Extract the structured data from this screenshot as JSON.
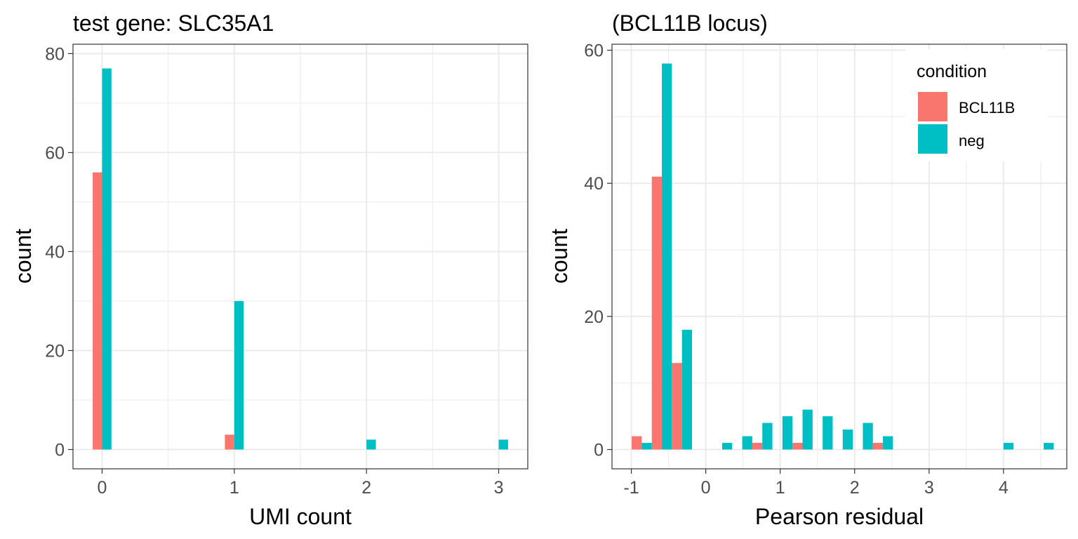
{
  "colors": {
    "BCL11B": "#F8766D",
    "neg": "#00BFC4"
  },
  "legend": {
    "title": "condition",
    "placement": "top-right",
    "items": [
      {
        "label": "BCL11B",
        "color": "#F8766D"
      },
      {
        "label": "neg",
        "color": "#00BFC4"
      }
    ]
  },
  "chart_data": [
    {
      "type": "bar",
      "title": "test gene: SLC35A1",
      "xlabel": "UMI count",
      "ylabel": "count",
      "xlim": [
        -0.22,
        3.22
      ],
      "ylim": [
        -3.9,
        81.9
      ],
      "xticks": [
        0,
        1,
        2,
        3
      ],
      "yticks": [
        0,
        20,
        40,
        60,
        80
      ],
      "grid": true,
      "bin_width": 0.142,
      "series": [
        {
          "name": "BCL11B",
          "color": "#F8766D",
          "x": [
            0,
            1,
            2,
            3
          ],
          "values": [
            56,
            3,
            0,
            0
          ]
        },
        {
          "name": "neg",
          "color": "#00BFC4",
          "x": [
            0,
            1,
            2,
            3
          ],
          "values": [
            77,
            30,
            2,
            2
          ]
        }
      ]
    },
    {
      "type": "bar",
      "title": "(BCL11B locus)",
      "xlabel": "Pearson residual",
      "ylabel": "count",
      "xlim": [
        -1.26,
        4.85
      ],
      "ylim": [
        -2.9,
        60.9
      ],
      "xticks": [
        -1,
        0,
        1,
        2,
        3,
        4
      ],
      "yticks": [
        0,
        20,
        40,
        60
      ],
      "grid": true,
      "bin_width": 0.27,
      "series": [
        {
          "name": "BCL11B",
          "color": "#F8766D",
          "x": [
            -0.86,
            -0.59,
            -0.32,
            -0.05,
            0.22,
            0.49,
            0.76,
            1.03,
            1.3,
            1.57,
            1.84,
            2.11,
            2.38,
            2.65,
            2.92,
            3.19,
            3.46,
            3.73,
            4.0,
            4.27,
            4.54
          ],
          "values": [
            2,
            41,
            13,
            0,
            0,
            0,
            1,
            0,
            1,
            0,
            0,
            0,
            1,
            0,
            0,
            0,
            0,
            0,
            0,
            0,
            0
          ]
        },
        {
          "name": "neg",
          "color": "#00BFC4",
          "x": [
            -0.86,
            -0.59,
            -0.32,
            -0.05,
            0.22,
            0.49,
            0.76,
            1.03,
            1.3,
            1.57,
            1.84,
            2.11,
            2.38,
            2.65,
            2.92,
            3.19,
            3.46,
            3.73,
            4.0,
            4.27,
            4.54
          ],
          "values": [
            1,
            58,
            18,
            0,
            1,
            2,
            4,
            5,
            6,
            5,
            3,
            4,
            2,
            0,
            0,
            0,
            0,
            0,
            1,
            0,
            1
          ]
        }
      ]
    }
  ]
}
